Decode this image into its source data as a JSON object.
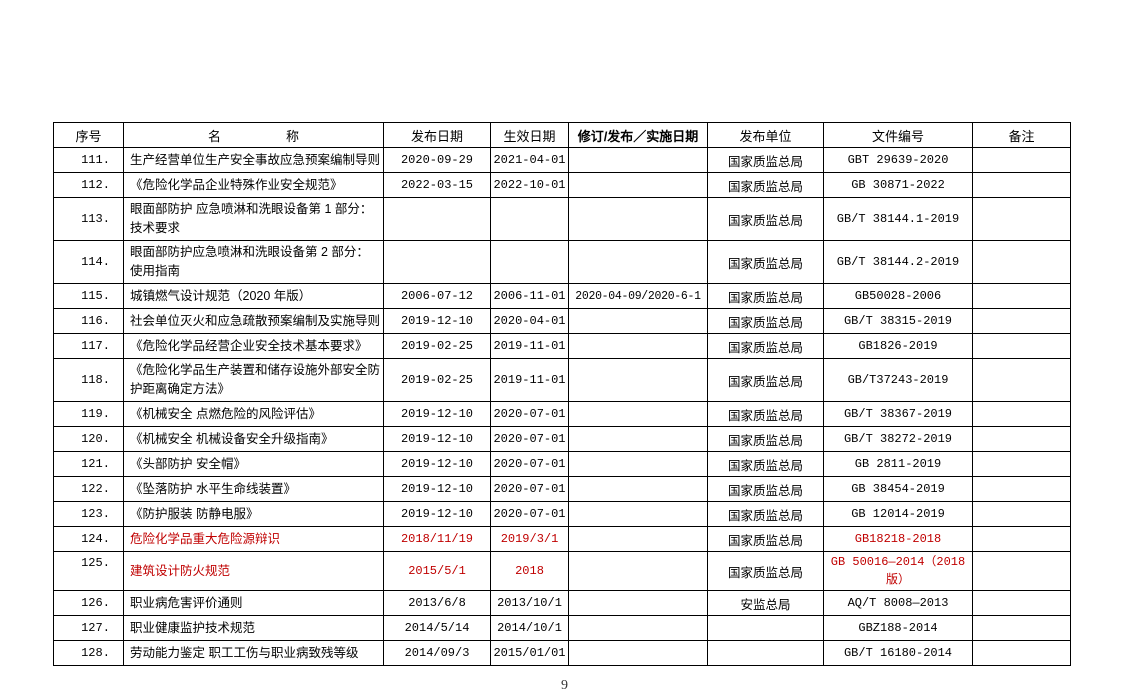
{
  "colors": {
    "text": "#000000",
    "highlight_red": "#c00000",
    "border": "#000000",
    "background": "#ffffff"
  },
  "page": {
    "number": "9"
  },
  "table": {
    "columns": [
      "序号",
      "名　　　　　称",
      "发布日期",
      "生效日期",
      "修订/发布／实施日期",
      "发布单位",
      "文件编号",
      "备注"
    ],
    "rows": [
      {
        "no": "111.",
        "name": "生产经营单位生产安全事故应急预案编制导则",
        "pub": "2020-09-29",
        "eff": "2021-04-01",
        "rev": "",
        "agency": "国家质监总局",
        "doc": "GBT 29639-2020",
        "note": "",
        "red": false
      },
      {
        "no": "112.",
        "name": "《危险化学品企业特殊作业安全规范》",
        "pub": "2022-03-15",
        "eff": "2022-10-01",
        "rev": "",
        "agency": "国家质监总局",
        "doc": "GB 30871-2022",
        "note": "",
        "red": false
      },
      {
        "no": "113.",
        "name": "眼面部防护 应急喷淋和洗眼设备第 1 部分：技术要求",
        "pub": "",
        "eff": "",
        "rev": "",
        "agency": "国家质监总局",
        "doc": "GB/T 38144.1-2019",
        "note": "",
        "red": false
      },
      {
        "no": "114.",
        "name": "眼面部防护应急喷淋和洗眼设备第 2 部分：使用指南",
        "pub": "",
        "eff": "",
        "rev": "",
        "agency": "国家质监总局",
        "doc": "GB/T 38144.2-2019",
        "note": "",
        "red": false
      },
      {
        "no": "115.",
        "name": "城镇燃气设计规范（2020 年版）",
        "pub": "2006-07-12",
        "eff": "2006-11-01",
        "rev": "2020-04-09/2020-6-1",
        "agency": "国家质监总局",
        "doc": "GB50028-2006",
        "note": "",
        "red": false
      },
      {
        "no": "116.",
        "name": "社会单位灭火和应急疏散预案编制及实施导则",
        "pub": "2019-12-10",
        "eff": "2020-04-01",
        "rev": "",
        "agency": "国家质监总局",
        "doc": "GB/T 38315-2019",
        "note": "",
        "red": false
      },
      {
        "no": "117.",
        "name": "《危险化学品经营企业安全技术基本要求》",
        "pub": "2019-02-25",
        "eff": "2019-11-01",
        "rev": "",
        "agency": "国家质监总局",
        "doc": "GB1826-2019",
        "note": "",
        "red": false
      },
      {
        "no": "118.",
        "name": "《危险化学品生产装置和储存设施外部安全防护距离确定方法》",
        "pub": "2019-02-25",
        "eff": "2019-11-01",
        "rev": "",
        "agency": "国家质监总局",
        "doc": "GB/T37243-2019",
        "note": "",
        "red": false
      },
      {
        "no": "119.",
        "name": "《机械安全 点燃危险的风险评估》",
        "pub": "2019-12-10",
        "eff": "2020-07-01",
        "rev": "",
        "agency": "国家质监总局",
        "doc": "GB/T 38367-2019",
        "note": "",
        "red": false
      },
      {
        "no": "120.",
        "name": "《机械安全 机械设备安全升级指南》",
        "pub": "2019-12-10",
        "eff": "2020-07-01",
        "rev": "",
        "agency": "国家质监总局",
        "doc": "GB/T 38272-2019",
        "note": "",
        "red": false
      },
      {
        "no": "121.",
        "name": "《头部防护 安全帽》",
        "pub": "2019-12-10",
        "eff": "2020-07-01",
        "rev": "",
        "agency": "国家质监总局",
        "doc": "GB 2811-2019",
        "note": "",
        "red": false
      },
      {
        "no": "122.",
        "name": "《坠落防护 水平生命线装置》",
        "pub": "2019-12-10",
        "eff": "2020-07-01",
        "rev": "",
        "agency": "国家质监总局",
        "doc": "GB 38454-2019",
        "note": "",
        "red": false
      },
      {
        "no": "123.",
        "name": "《防护服装 防静电服》",
        "pub": "2019-12-10",
        "eff": "2020-07-01",
        "rev": "",
        "agency": "国家质监总局",
        "doc": "GB 12014-2019",
        "note": "",
        "red": false
      },
      {
        "no": "124.",
        "name": "危险化学品重大危险源辩识",
        "pub": "2018/11/19",
        "eff": "2019/3/1",
        "rev": "",
        "agency": "国家质监总局",
        "doc": "GB18218-2018",
        "note": "",
        "red": true
      },
      {
        "no": "125.",
        "name": "建筑设计防火规范",
        "pub": "2015/5/1",
        "eff": "2018",
        "rev": "",
        "agency": "国家质监总局",
        "doc": "GB 50016—2014（2018 版）",
        "note": "",
        "red": true
      },
      {
        "no": "126.",
        "name": "职业病危害评价通则",
        "pub": "2013/6/8",
        "eff": "2013/10/1",
        "rev": "",
        "agency": "安监总局",
        "doc": "AQ/T 8008—2013",
        "note": "",
        "red": false
      },
      {
        "no": "127.",
        "name": "职业健康监护技术规范",
        "pub": "2014/5/14",
        "eff": "2014/10/1",
        "rev": "",
        "agency": "",
        "doc": "GBZ188-2014",
        "note": "",
        "red": false
      },
      {
        "no": "128.",
        "name": "劳动能力鉴定 职工工伤与职业病致残等级",
        "pub": "2014/09/3",
        "eff": "2015/01/01",
        "rev": "",
        "agency": "",
        "doc": "GB/T 16180-2014",
        "note": "",
        "red": false
      }
    ]
  }
}
